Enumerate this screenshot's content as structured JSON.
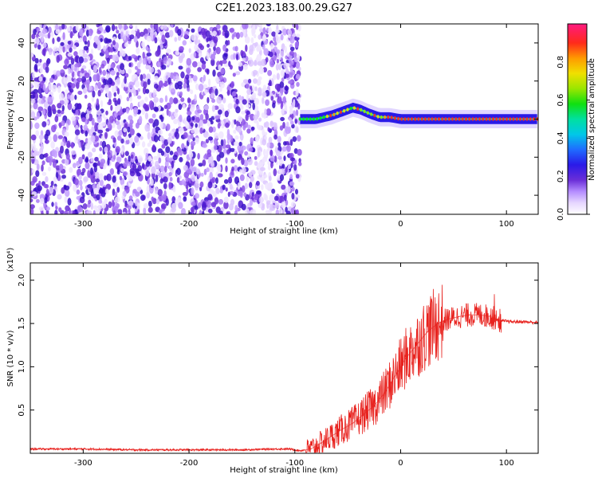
{
  "chart_data": [
    {
      "type": "heatmap",
      "title": "C2E1.2023.183.00.29.G27",
      "xlabel": "Height of straight line (km)",
      "ylabel": "Frequency (Hz)",
      "xlim": [
        -350,
        130
      ],
      "ylim": [
        -50,
        50
      ],
      "xticks": [
        "-300",
        "-200",
        "-100",
        "0",
        "100"
      ],
      "yticks": [
        "-40",
        "-20",
        "0",
        "20",
        "40"
      ],
      "colorbar": {
        "label": "Normalized spectral amplitude",
        "range": [
          0,
          1
        ],
        "ticks": [
          "0.0",
          "0.2",
          "0.4",
          "0.6",
          "0.8"
        ]
      },
      "features": {
        "noisy_region_x": [
          -350,
          -95
        ],
        "carrier_line_x": [
          -95,
          130
        ],
        "carrier_frequency_hz": [
          [
            -95,
            0
          ],
          [
            -80,
            0
          ],
          [
            -65,
            2
          ],
          [
            -55,
            4
          ],
          [
            -45,
            6
          ],
          [
            -38,
            5
          ],
          [
            -30,
            3
          ],
          [
            -20,
            1
          ],
          [
            -10,
            1
          ],
          [
            0,
            0
          ],
          [
            20,
            0
          ],
          [
            50,
            0
          ],
          [
            90,
            0
          ],
          [
            130,
            0
          ]
        ],
        "grid": false
      }
    },
    {
      "type": "line",
      "title": "",
      "xlabel": "Height of straight line (km)",
      "ylabel": "SNR (10 * v/v)",
      "y_multiplier": "(x10⁴)",
      "xlim": [
        -350,
        130
      ],
      "ylim": [
        0,
        2.2
      ],
      "xticks": [
        "-300",
        "-200",
        "-100",
        "0",
        "100"
      ],
      "yticks": [
        "0.5",
        "1.0",
        "1.5",
        "2.0"
      ],
      "color": "#e8221e",
      "series": [
        {
          "x": [
            -350,
            -300,
            -250,
            -200,
            -150,
            -120,
            -105,
            -95,
            -85,
            -75,
            -65,
            -55,
            -45,
            -35,
            -25,
            -15,
            -5,
            5,
            15,
            25,
            35,
            45,
            55,
            65,
            75,
            85,
            90,
            95,
            105,
            115,
            130
          ],
          "y": [
            0.05,
            0.05,
            0.04,
            0.04,
            0.04,
            0.05,
            0.05,
            0.03,
            0.05,
            0.12,
            0.2,
            0.28,
            0.35,
            0.45,
            0.55,
            0.7,
            0.9,
            1.1,
            1.25,
            1.4,
            1.5,
            1.55,
            1.58,
            1.6,
            1.6,
            1.58,
            1.55,
            1.53,
            1.52,
            1.52,
            1.51
          ]
        }
      ],
      "grid": false
    }
  ]
}
